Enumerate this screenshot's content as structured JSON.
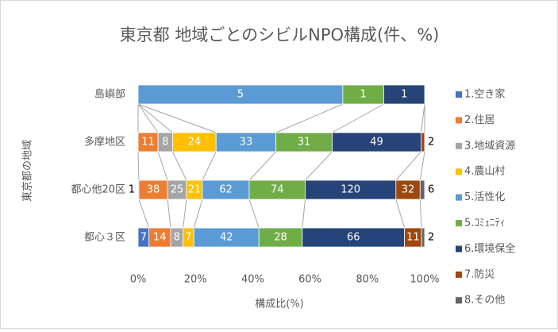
{
  "chart_data": {
    "type": "stacked_bar_100",
    "title": "東京都 地域ごとのシビルNPO構成(件、%)",
    "x_label": "構成比(%)",
    "y_label": "東京都の地域",
    "categories": [
      "島嶼部",
      "多摩地区",
      "都心他20区",
      "都心３区"
    ],
    "series": [
      {
        "name": "1.空き家",
        "color": "#4472c4",
        "values": [
          0,
          0,
          1,
          7
        ]
      },
      {
        "name": "2.住居",
        "color": "#ed7d31",
        "values": [
          0,
          11,
          38,
          14
        ]
      },
      {
        "name": "3.地域資源",
        "color": "#a5a5a5",
        "values": [
          0,
          8,
          25,
          8
        ]
      },
      {
        "name": "4.農山村",
        "color": "#ffc000",
        "values": [
          0,
          24,
          21,
          7
        ]
      },
      {
        "name": "5.活性化",
        "color": "#5b9bd5",
        "values": [
          5,
          33,
          62,
          42
        ]
      },
      {
        "name": "5.ｺﾐｭﾆﾃｨ",
        "color": "#70ad47",
        "values": [
          1,
          31,
          74,
          28
        ]
      },
      {
        "name": "6.環境保全",
        "color": "#264478",
        "values": [
          1,
          49,
          120,
          66
        ]
      },
      {
        "name": "7.防災",
        "color": "#9e480e",
        "values": [
          0,
          2,
          32,
          11
        ]
      },
      {
        "name": "8.その他",
        "color": "#636363",
        "values": [
          0,
          0,
          6,
          2
        ]
      }
    ],
    "xlim": [
      0,
      100
    ],
    "xticks": [
      {
        "value": 0,
        "label": "0%"
      },
      {
        "value": 20,
        "label": "20%"
      },
      {
        "value": 40,
        "label": "40%"
      },
      {
        "value": 60,
        "label": "60%"
      },
      {
        "value": 80,
        "label": "80%"
      },
      {
        "value": 100,
        "label": "100%"
      }
    ],
    "legend": "right"
  }
}
